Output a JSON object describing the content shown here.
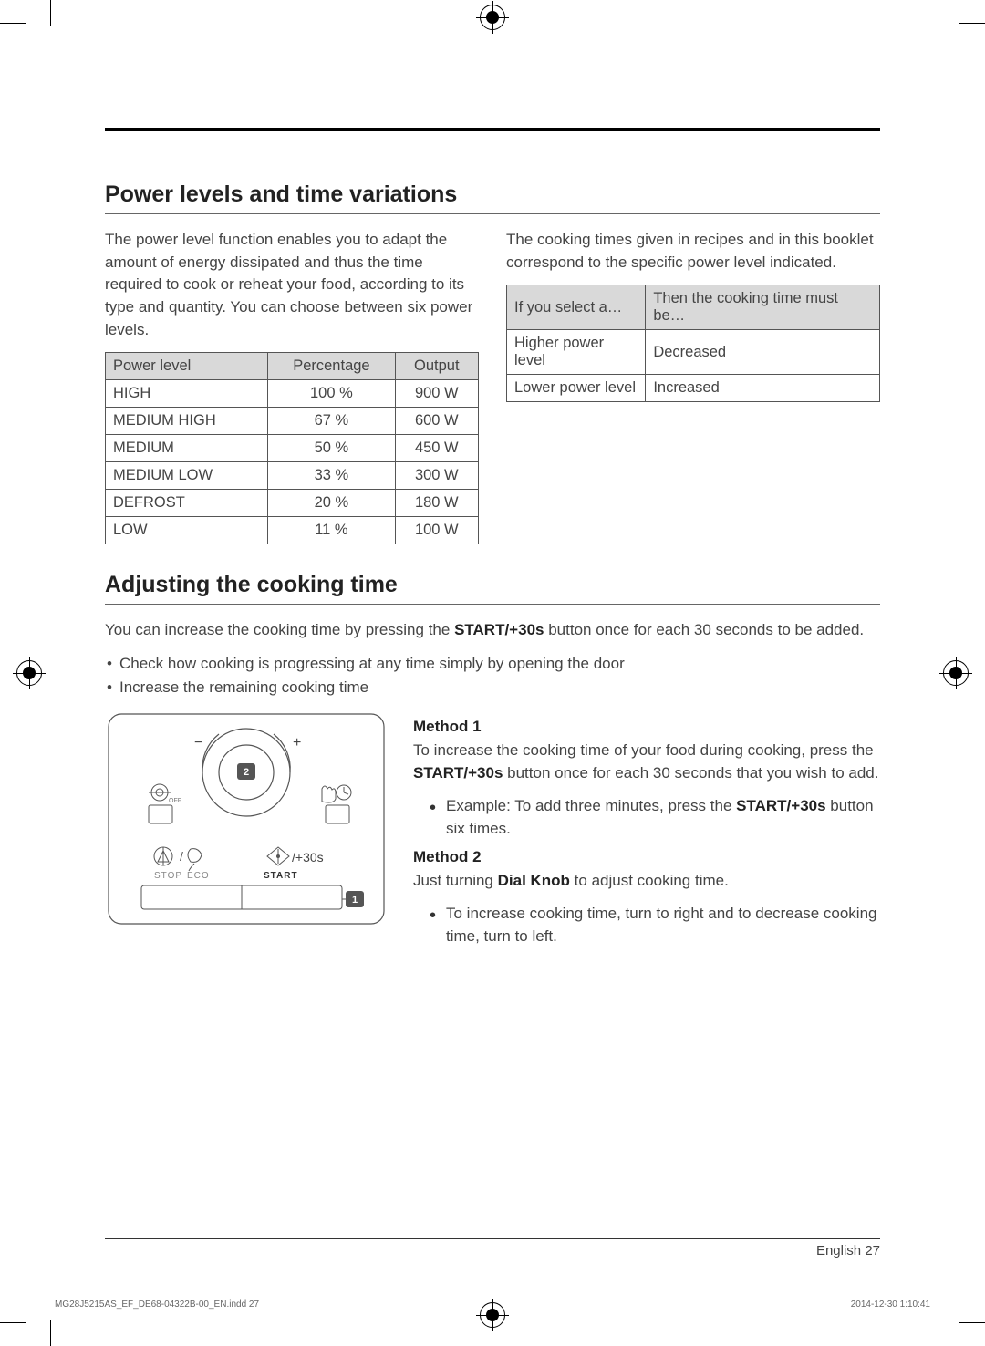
{
  "section1": {
    "title": "Power levels and time variations",
    "intro_left": "The power level function enables you to adapt the amount of energy dissipated and thus the time required to cook or reheat your food, according to its type and quantity. You can choose between six power levels.",
    "intro_right": "The cooking times given in recipes and in this booklet correspond to the specific power level indicated.",
    "power_table": {
      "headers": [
        "Power level",
        "Percentage",
        "Output"
      ],
      "rows": [
        [
          "HIGH",
          "100 %",
          "900 W"
        ],
        [
          "MEDIUM HIGH",
          "67 %",
          "600 W"
        ],
        [
          "MEDIUM",
          "50 %",
          "450 W"
        ],
        [
          "MEDIUM LOW",
          "33 %",
          "300 W"
        ],
        [
          "DEFROST",
          "20 %",
          "180 W"
        ],
        [
          "LOW",
          "11 %",
          "100 W"
        ]
      ]
    },
    "time_table": {
      "headers": [
        "If you select a…",
        "Then the cooking time must be…"
      ],
      "rows": [
        [
          "Higher power level",
          "Decreased"
        ],
        [
          "Lower power level",
          "Increased"
        ]
      ]
    }
  },
  "section2": {
    "title": "Adjusting the cooking time",
    "intro_pre": "You can increase the cooking time by pressing the ",
    "intro_strong": "START/+30s",
    "intro_post": " button once for each 30 seconds to be added.",
    "bullets": [
      "Check how cooking is progressing at any time simply by opening the door",
      "Increase the remaining cooking time"
    ],
    "diagram": {
      "minus": "−",
      "plus": "+",
      "plus30s": "/+30s",
      "stop": "STOP",
      "eco": "ECO",
      "start": "START",
      "off": "OFF",
      "callout1": "1",
      "callout2": "2"
    },
    "method1": {
      "label": "Method 1",
      "p_pre": "To increase the cooking time of your food during cooking, press the ",
      "p_strong": "START/+30s",
      "p_post": " button once for each 30 seconds that you wish to add.",
      "example_pre": "Example: To add three minutes, press the ",
      "example_strong": "START/+30s",
      "example_post": " button six times."
    },
    "method2": {
      "label": "Method 2",
      "p_pre": "Just turning ",
      "p_strong": "Dial Knob",
      "p_post": " to adjust cooking time.",
      "bullet": "To increase cooking time, turn to right and to decrease cooking time, turn to left."
    }
  },
  "footer": {
    "lang": "English",
    "page": "27",
    "file": "MG28J5215AS_EF_DE68-04322B-00_EN.indd   27",
    "date": "2014-12-30   1:10:41"
  }
}
